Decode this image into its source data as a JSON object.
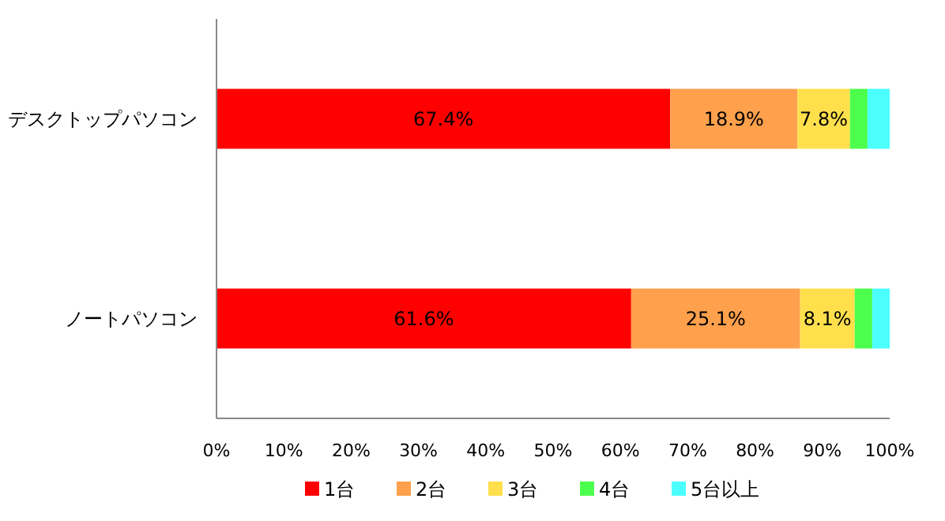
{
  "chart_data": {
    "type": "bar",
    "orientation": "horizontal",
    "stacked": true,
    "categories": [
      "デスクトップパソコン",
      "ノートパソコン"
    ],
    "series": [
      {
        "name": "1台",
        "color": "#ff0000",
        "values": [
          67.4,
          61.6
        ],
        "value_labels": [
          "67.4%",
          "61.6%"
        ]
      },
      {
        "name": "2台",
        "color": "#ffa04c",
        "values": [
          18.9,
          25.1
        ],
        "value_labels": [
          "18.9%",
          "25.1%"
        ]
      },
      {
        "name": "3台",
        "color": "#ffe04c",
        "values": [
          7.8,
          8.1
        ],
        "value_labels": [
          "7.8%",
          "8.1%"
        ]
      },
      {
        "name": "4台",
        "color": "#4cff4c",
        "values": [
          2.6,
          2.6
        ]
      },
      {
        "name": "5台以上",
        "color": "#4cffff",
        "values": [
          3.3,
          2.6
        ]
      }
    ],
    "xlim": [
      0,
      100
    ],
    "xticks": [
      {
        "value": 0,
        "label": "0%"
      },
      {
        "value": 10,
        "label": "10%"
      },
      {
        "value": 20,
        "label": "20%"
      },
      {
        "value": 30,
        "label": "30%"
      },
      {
        "value": 40,
        "label": "40%"
      },
      {
        "value": 50,
        "label": "50%"
      },
      {
        "value": 60,
        "label": "60%"
      },
      {
        "value": 70,
        "label": "70%"
      },
      {
        "value": 80,
        "label": "80%"
      },
      {
        "value": 90,
        "label": "90%"
      },
      {
        "value": 100,
        "label": "100%"
      }
    ],
    "grid": false,
    "legend": "bottom"
  }
}
